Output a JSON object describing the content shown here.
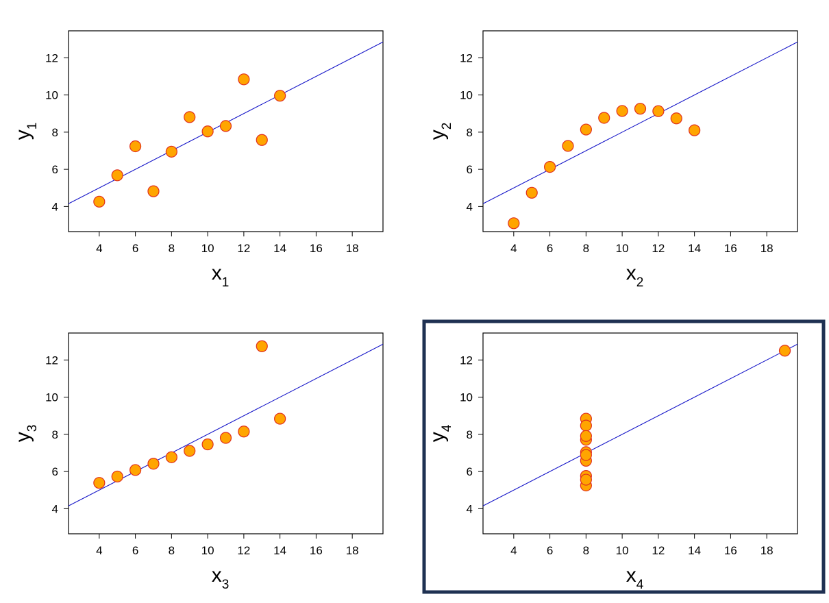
{
  "chart_data": [
    {
      "type": "scatter",
      "panel": "I",
      "xlabel_base": "x",
      "xlabel_sub": "1",
      "ylabel_base": "y",
      "ylabel_sub": "1",
      "xlim": [
        2.3,
        19.7
      ],
      "ylim": [
        2.65,
        13.45
      ],
      "xticks": [
        "4",
        "6",
        "8",
        "10",
        "12",
        "14",
        "16",
        "18"
      ],
      "yticks": [
        "4",
        "6",
        "8",
        "10",
        "12"
      ],
      "x": [
        10,
        8,
        13,
        9,
        11,
        14,
        6,
        4,
        12,
        7,
        5
      ],
      "y": [
        8.04,
        6.95,
        7.58,
        8.81,
        8.33,
        9.96,
        7.24,
        4.26,
        10.84,
        4.82,
        5.68
      ],
      "fit_line": {
        "intercept": 3.0,
        "slope": 0.5
      },
      "highlighted": false
    },
    {
      "type": "scatter",
      "panel": "II",
      "xlabel_base": "x",
      "xlabel_sub": "2",
      "ylabel_base": "y",
      "ylabel_sub": "2",
      "xlim": [
        2.3,
        19.7
      ],
      "ylim": [
        2.65,
        13.45
      ],
      "xticks": [
        "4",
        "6",
        "8",
        "10",
        "12",
        "14",
        "16",
        "18"
      ],
      "yticks": [
        "4",
        "6",
        "8",
        "10",
        "12"
      ],
      "x": [
        10,
        8,
        13,
        9,
        11,
        14,
        6,
        4,
        12,
        7,
        5
      ],
      "y": [
        9.14,
        8.14,
        8.74,
        8.77,
        9.26,
        8.1,
        6.13,
        3.1,
        9.13,
        7.26,
        4.74
      ],
      "fit_line": {
        "intercept": 3.0,
        "slope": 0.5
      },
      "highlighted": false
    },
    {
      "type": "scatter",
      "panel": "III",
      "xlabel_base": "x",
      "xlabel_sub": "3",
      "ylabel_base": "y",
      "ylabel_sub": "3",
      "xlim": [
        2.3,
        19.7
      ],
      "ylim": [
        2.65,
        13.45
      ],
      "xticks": [
        "4",
        "6",
        "8",
        "10",
        "12",
        "14",
        "16",
        "18"
      ],
      "yticks": [
        "4",
        "6",
        "8",
        "10",
        "12"
      ],
      "x": [
        10,
        8,
        13,
        9,
        11,
        14,
        6,
        4,
        12,
        7,
        5
      ],
      "y": [
        7.46,
        6.77,
        12.74,
        7.11,
        7.81,
        8.84,
        6.08,
        5.39,
        8.15,
        6.42,
        5.73
      ],
      "fit_line": {
        "intercept": 3.0,
        "slope": 0.5
      },
      "highlighted": false
    },
    {
      "type": "scatter",
      "panel": "IV",
      "xlabel_base": "x",
      "xlabel_sub": "4",
      "ylabel_base": "y",
      "ylabel_sub": "4",
      "xlim": [
        2.3,
        19.7
      ],
      "ylim": [
        2.65,
        13.45
      ],
      "xticks": [
        "4",
        "6",
        "8",
        "10",
        "12",
        "14",
        "16",
        "18"
      ],
      "yticks": [
        "4",
        "6",
        "8",
        "10",
        "12"
      ],
      "x": [
        8,
        8,
        8,
        8,
        8,
        8,
        8,
        19,
        8,
        8,
        8
      ],
      "y": [
        6.58,
        5.76,
        7.71,
        8.84,
        8.47,
        7.04,
        5.25,
        12.5,
        5.56,
        7.91,
        6.89
      ],
      "fit_line": {
        "intercept": 3.0,
        "slope": 0.5
      },
      "highlighted": true
    }
  ],
  "style": {
    "marker_fill": "#ffa500",
    "marker_stroke": "#e0301e",
    "fit_line_color": "#1515c8",
    "highlight_color": "#1f3152"
  }
}
